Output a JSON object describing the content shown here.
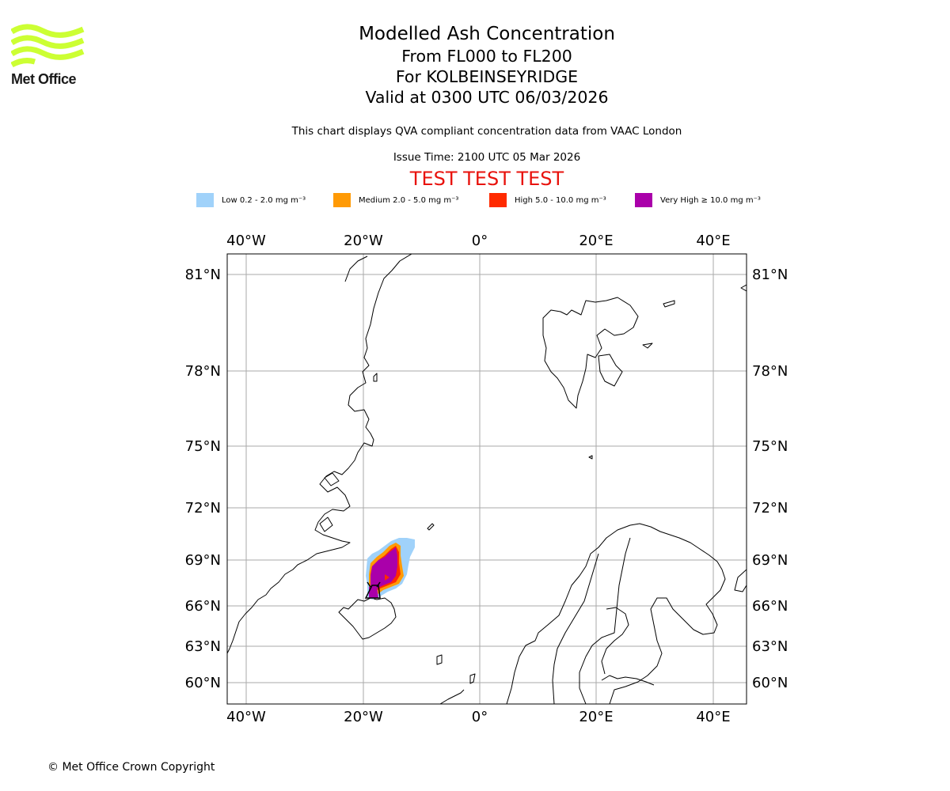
{
  "logo": {
    "text": "Met Office",
    "color": "#ccff33"
  },
  "header": {
    "title": "Modelled Ash Concentration",
    "levels": "From FL000 to FL200",
    "volcano": "For KOLBEINSEYRIDGE",
    "valid": "Valid at 0300 UTC 06/03/2026",
    "qva_note": "This chart displays QVA compliant concentration data from VAAC London",
    "issue_time": "Issue Time: 2100 UTC 05 Mar 2026",
    "test_banner": "TEST TEST TEST"
  },
  "legend": [
    {
      "label": "Low 0.2 - 2.0 mg m⁻³",
      "color": "#a0d2fa"
    },
    {
      "label": "Medium 2.0 - 5.0 mg m⁻³",
      "color": "#ff9a05"
    },
    {
      "label": "High 5.0 - 10.0 mg m⁻³",
      "color": "#ff2a00"
    },
    {
      "label": "Very High ≥ 10.0 mg m⁻³",
      "color": "#aa00aa"
    }
  ],
  "map": {
    "longitude_labels": [
      "40°W",
      "20°W",
      "0°",
      "20°E",
      "40°E"
    ],
    "latitude_labels": [
      "81°N",
      "78°N",
      "75°N",
      "72°N",
      "69°N",
      "66°N",
      "63°N",
      "60°N"
    ],
    "gridline_color": "#aaaaaa"
  },
  "footer": {
    "copyright": "© Met Office Crown Copyright"
  }
}
